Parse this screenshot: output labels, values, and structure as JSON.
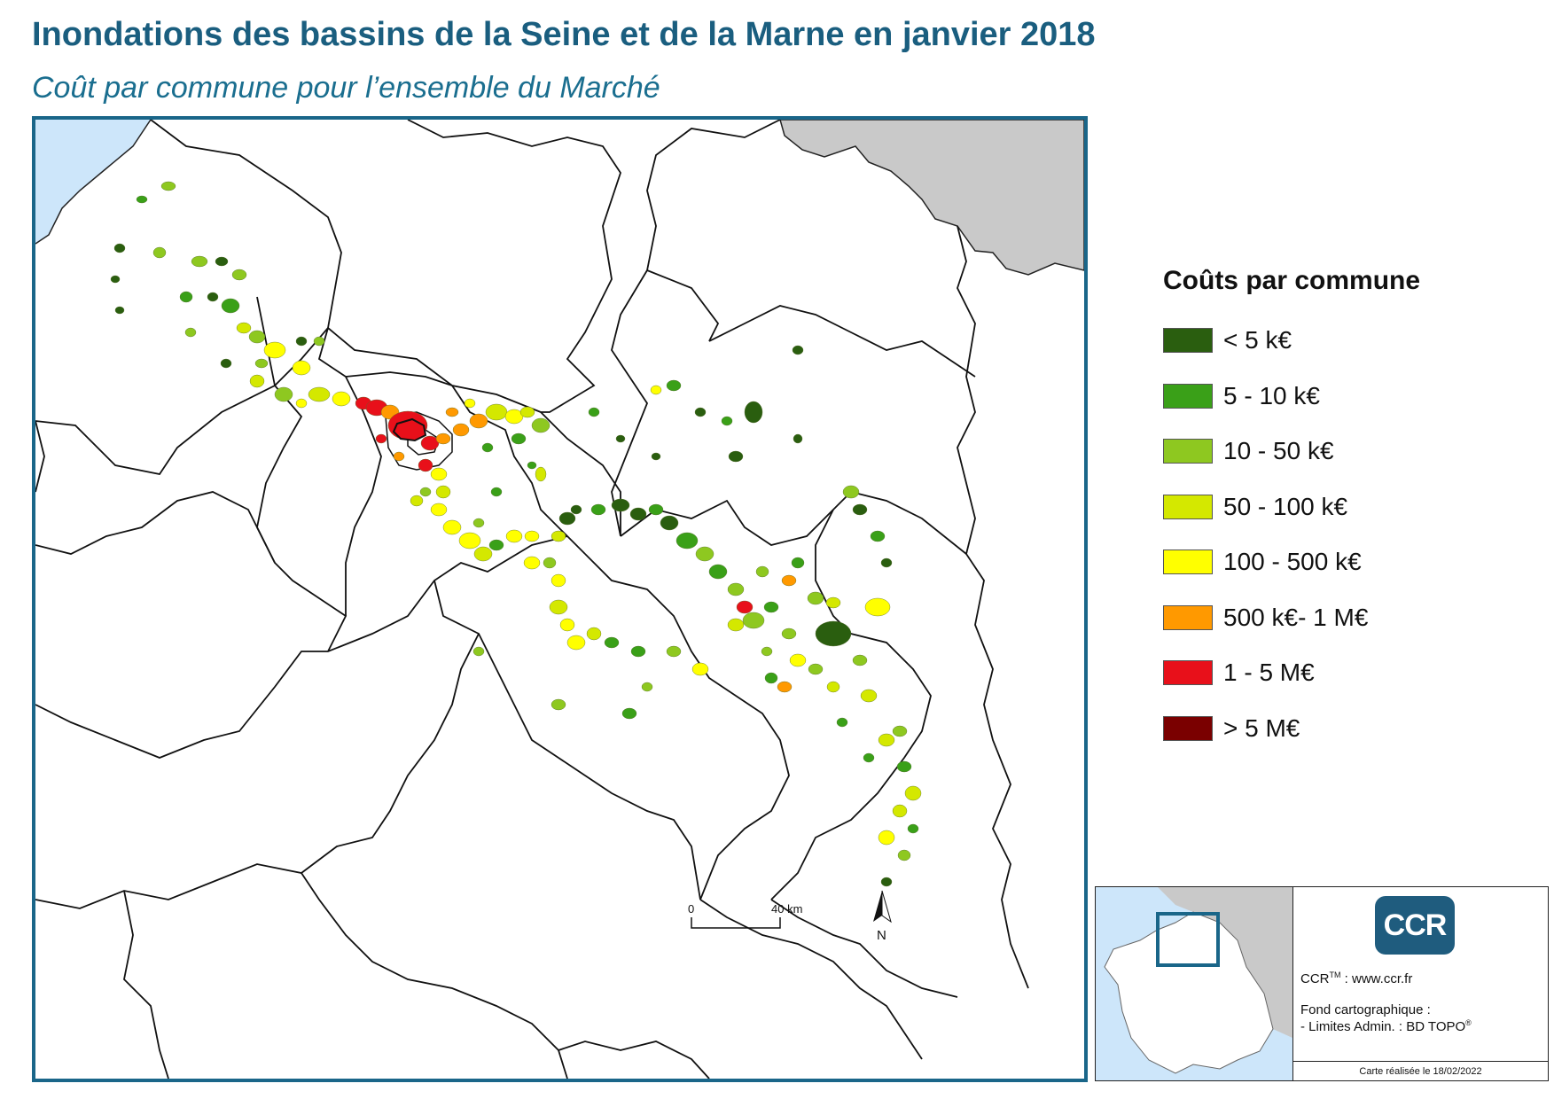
{
  "title": "Inondations des bassins de la Seine et de la Marne en janvier 2018",
  "subtitle": "Coût par commune pour l’ensemble du Marché",
  "legend": {
    "title": "Coûts par commune",
    "items": [
      {
        "label": "< 5 k€",
        "color": "#2a5e0f"
      },
      {
        "label": "5 - 10 k€",
        "color": "#3aa018"
      },
      {
        "label": "10 - 50 k€",
        "color": "#8ec820"
      },
      {
        "label": "50 - 100 k€",
        "color": "#d4e800"
      },
      {
        "label": "100 - 500 k€",
        "color": "#ffff00"
      },
      {
        "label": "500 k€- 1 M€",
        "color": "#ff9900"
      },
      {
        "label": "1 - 5 M€",
        "color": "#e8101a"
      },
      {
        "label": "> 5 M€",
        "color": "#7a0000"
      }
    ]
  },
  "scale": {
    "start": "0",
    "end": "40 km"
  },
  "north": "N",
  "colors": {
    "sea": "#cde6fa",
    "foreign": "#c9c9c9",
    "frame": "#1a6689",
    "title": "#1a5e7f"
  },
  "credits": {
    "logo": "CCR",
    "ccr_line": "CCR",
    "tm": "TM",
    "url": " : www.ccr.fr",
    "fond": "Fond cartographique :",
    "limites": "- Limites Admin. : BD TOPO",
    "reg": "®",
    "date": "Carte réalisée le 18/02/2022"
  }
}
